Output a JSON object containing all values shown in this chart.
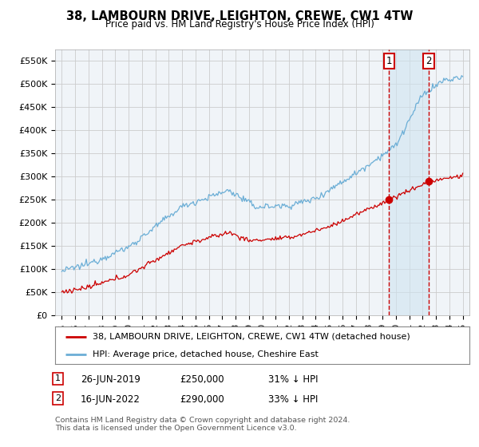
{
  "title": "38, LAMBOURN DRIVE, LEIGHTON, CREWE, CW1 4TW",
  "subtitle": "Price paid vs. HM Land Registry's House Price Index (HPI)",
  "legend_line1": "38, LAMBOURN DRIVE, LEIGHTON, CREWE, CW1 4TW (detached house)",
  "legend_line2": "HPI: Average price, detached house, Cheshire East",
  "footer": "Contains HM Land Registry data © Crown copyright and database right 2024.\nThis data is licensed under the Open Government Licence v3.0.",
  "table_rows": [
    {
      "num": "1",
      "date": "26-JUN-2019",
      "price": "£250,000",
      "hpi": "31% ↓ HPI"
    },
    {
      "num": "2",
      "date": "16-JUN-2022",
      "price": "£290,000",
      "hpi": "33% ↓ HPI"
    }
  ],
  "sale1_x": 2019.48,
  "sale1_y": 250000,
  "sale2_x": 2022.45,
  "sale2_y": 290000,
  "ylim": [
    0,
    575000
  ],
  "xlim": [
    1994.5,
    2025.5
  ],
  "yticks": [
    0,
    50000,
    100000,
    150000,
    200000,
    250000,
    300000,
    350000,
    400000,
    450000,
    500000,
    550000
  ],
  "ytick_labels": [
    "£0",
    "£50K",
    "£100K",
    "£150K",
    "£200K",
    "£250K",
    "£300K",
    "£350K",
    "£400K",
    "£450K",
    "£500K",
    "£550K"
  ],
  "xticks": [
    1995,
    1996,
    1997,
    1998,
    1999,
    2000,
    2001,
    2002,
    2003,
    2004,
    2005,
    2006,
    2007,
    2008,
    2009,
    2010,
    2011,
    2012,
    2013,
    2014,
    2015,
    2016,
    2017,
    2018,
    2019,
    2020,
    2021,
    2022,
    2023,
    2024,
    2025
  ],
  "hpi_color": "#6baed6",
  "sale_color": "#cc0000",
  "grid_color": "#cccccc",
  "bg_color": "#ffffff",
  "plot_bg_color": "#f0f4f8",
  "shade_color": "#d0e4f0"
}
